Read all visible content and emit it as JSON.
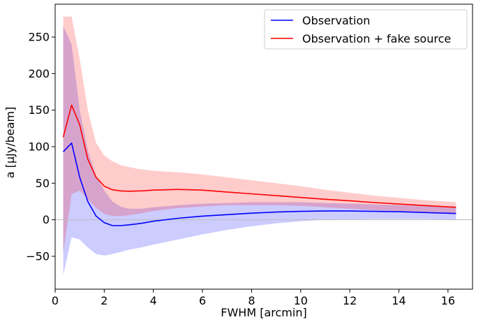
{
  "chart_data": {
    "type": "line",
    "xlabel": "FWHM [arcmin]",
    "ylabel": "a [μJy/beam]",
    "xlim": [
      0,
      17
    ],
    "ylim": [
      -95,
      295
    ],
    "xticks": [
      0,
      2,
      4,
      6,
      8,
      10,
      12,
      14,
      16
    ],
    "yticks": [
      -50,
      0,
      50,
      100,
      150,
      200,
      250
    ],
    "ytick_labels": [
      "−50",
      "0",
      "50",
      "100",
      "150",
      "200",
      "250"
    ],
    "reference_line_y": 0,
    "grid": false,
    "legend_position": "top-right",
    "series": [
      {
        "name": "Observation",
        "color": "#0000ff",
        "band_color": "#0000ff",
        "band_opacity": 0.2,
        "x": [
          0.33,
          0.67,
          1.0,
          1.33,
          1.67,
          2.0,
          2.33,
          2.67,
          3.0,
          3.5,
          4,
          5,
          6,
          7,
          8,
          9,
          10,
          11,
          12,
          13,
          14,
          15,
          16.33
        ],
        "y": [
          93,
          105,
          58,
          25,
          5,
          -4,
          -8,
          -8,
          -7,
          -5,
          -2,
          2,
          5,
          7,
          9,
          10.5,
          11.5,
          12,
          12,
          11.5,
          11,
          10,
          8.5
        ],
        "lower": [
          -76,
          -24,
          -27,
          -38,
          -47,
          -49,
          -47,
          -44,
          -41,
          -38,
          -34,
          -27,
          -20,
          -14,
          -9,
          -5,
          -2,
          0,
          0.5,
          1,
          1,
          1,
          0
        ],
        "upper": [
          265,
          240,
          150,
          95,
          60,
          40,
          25,
          18,
          15,
          15,
          17,
          20,
          22,
          23,
          24,
          24,
          24,
          23,
          22,
          21,
          20,
          19,
          18
        ]
      },
      {
        "name": "Observation + fake source",
        "color": "#ff0000",
        "band_color": "#ff0000",
        "band_opacity": 0.2,
        "x": [
          0.33,
          0.67,
          1.0,
          1.33,
          1.67,
          2.0,
          2.33,
          2.67,
          3.0,
          3.5,
          4,
          5,
          6,
          7,
          8,
          9,
          10,
          11,
          12,
          13,
          14,
          15,
          16.33
        ],
        "y": [
          113,
          157,
          130,
          83,
          58,
          46,
          41,
          39.5,
          39,
          39.5,
          40.5,
          41.5,
          40.5,
          38,
          35.5,
          33,
          30.5,
          28,
          26,
          23.5,
          21.5,
          19.5,
          17
        ],
        "lower": [
          -45,
          35,
          40,
          28,
          16,
          8,
          5,
          5,
          6,
          9,
          12,
          16,
          18,
          20,
          20,
          20,
          19,
          17,
          15,
          13,
          12,
          11,
          9
        ],
        "upper": [
          278,
          278,
          220,
          150,
          105,
          88,
          80,
          75,
          72,
          69,
          67,
          65,
          62,
          58,
          54,
          50,
          46,
          41,
          37,
          33,
          30,
          27,
          24
        ]
      }
    ]
  }
}
